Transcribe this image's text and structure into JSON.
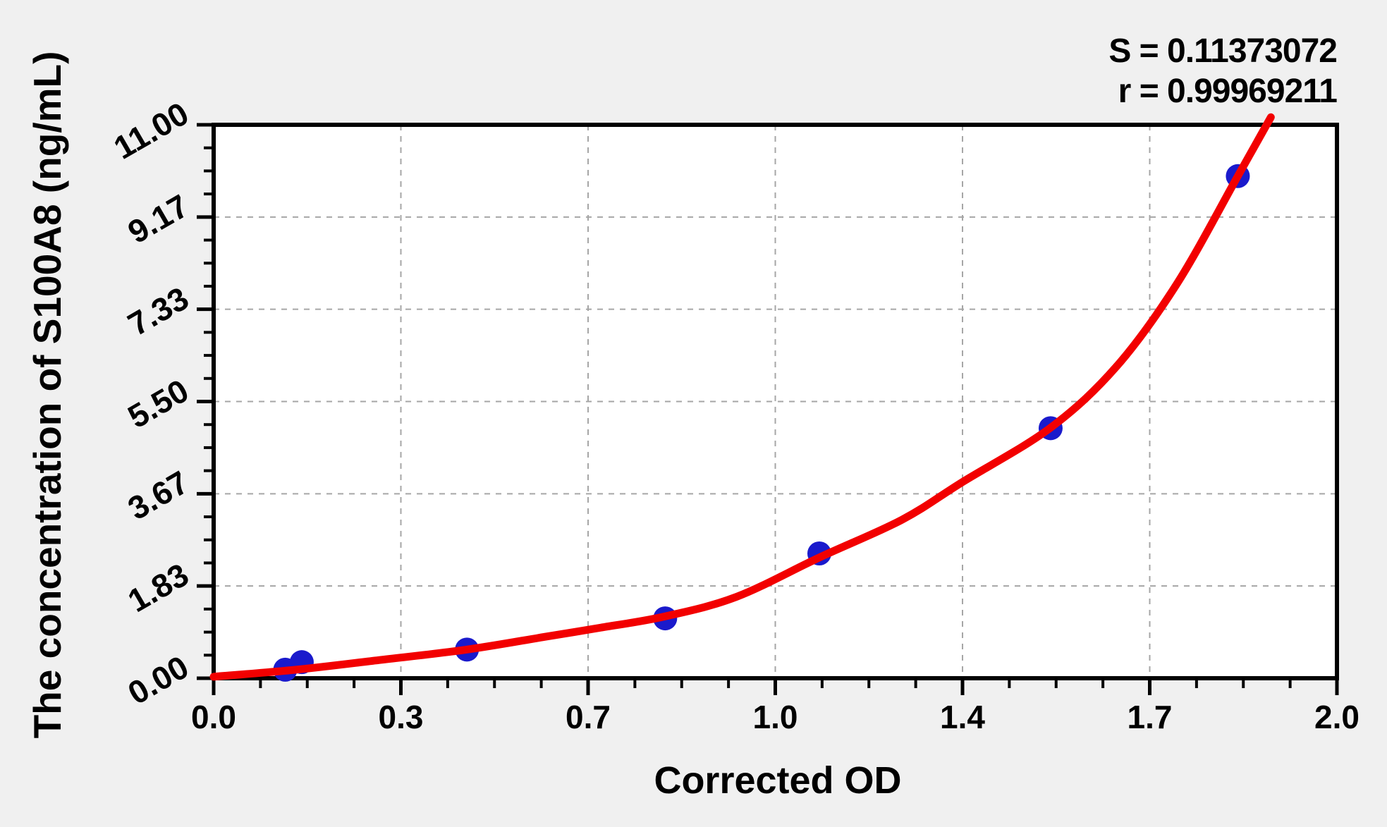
{
  "figure": {
    "background": "#f0f0f0"
  },
  "annotation": {
    "s_line": "S = 0.11373072",
    "r_line": "r = 0.99969211"
  },
  "chart_data": {
    "type": "scatter",
    "title": "",
    "xlabel": "Corrected OD",
    "ylabel": "The concentration of S100A8 (ng/mL)",
    "xlim": [
      0,
      2.04
    ],
    "ylim": [
      0,
      11
    ],
    "x_major_ticks": [
      0,
      0.34,
      0.68,
      1.02,
      1.36,
      1.7,
      2.04
    ],
    "x_tick_labels": [
      "0.0",
      "0.3",
      "0.7",
      "1.0",
      "1.4",
      "1.7",
      "2.0"
    ],
    "y_major_ticks": [
      0,
      1.8333,
      3.6667,
      5.5,
      7.3333,
      9.1667,
      11
    ],
    "y_tick_labels": [
      "0.00",
      "1.83",
      "3.67",
      "5.50",
      "7.33",
      "9.17",
      "11.00"
    ],
    "minor_divisions": 4,
    "grid": {
      "style": "dashed",
      "on_major_ticks": true,
      "color": "#a6a6a6"
    },
    "legend": "none",
    "stats": {
      "S": "0.11373072",
      "r": "0.99969211"
    },
    "series": [
      {
        "name": "standard-points",
        "type": "scatter",
        "color": "#1a1acc",
        "marker_radius": 17,
        "points": [
          [
            0.13,
            0.17
          ],
          [
            0.16,
            0.32
          ],
          [
            0.46,
            0.57
          ],
          [
            0.82,
            1.19
          ],
          [
            1.1,
            2.48
          ],
          [
            1.52,
            4.97
          ],
          [
            1.86,
            9.98
          ]
        ]
      },
      {
        "name": "fitted-curve",
        "type": "line",
        "color": "#f20000",
        "line_width": 11,
        "points": [
          [
            0.0,
            0.03
          ],
          [
            0.15,
            0.17
          ],
          [
            0.3,
            0.36
          ],
          [
            0.46,
            0.57
          ],
          [
            0.6,
            0.82
          ],
          [
            0.7,
            1.0
          ],
          [
            0.82,
            1.23
          ],
          [
            0.95,
            1.62
          ],
          [
            1.1,
            2.4
          ],
          [
            1.25,
            3.15
          ],
          [
            1.36,
            3.9
          ],
          [
            1.52,
            4.98
          ],
          [
            1.64,
            6.2
          ],
          [
            1.75,
            7.85
          ],
          [
            1.86,
            9.98
          ],
          [
            1.92,
            11.15
          ]
        ]
      }
    ],
    "colors": {
      "axis": "#000000",
      "plot_background": "#ffffff",
      "page_background": "#f0f0f0",
      "text": "#000000"
    }
  }
}
